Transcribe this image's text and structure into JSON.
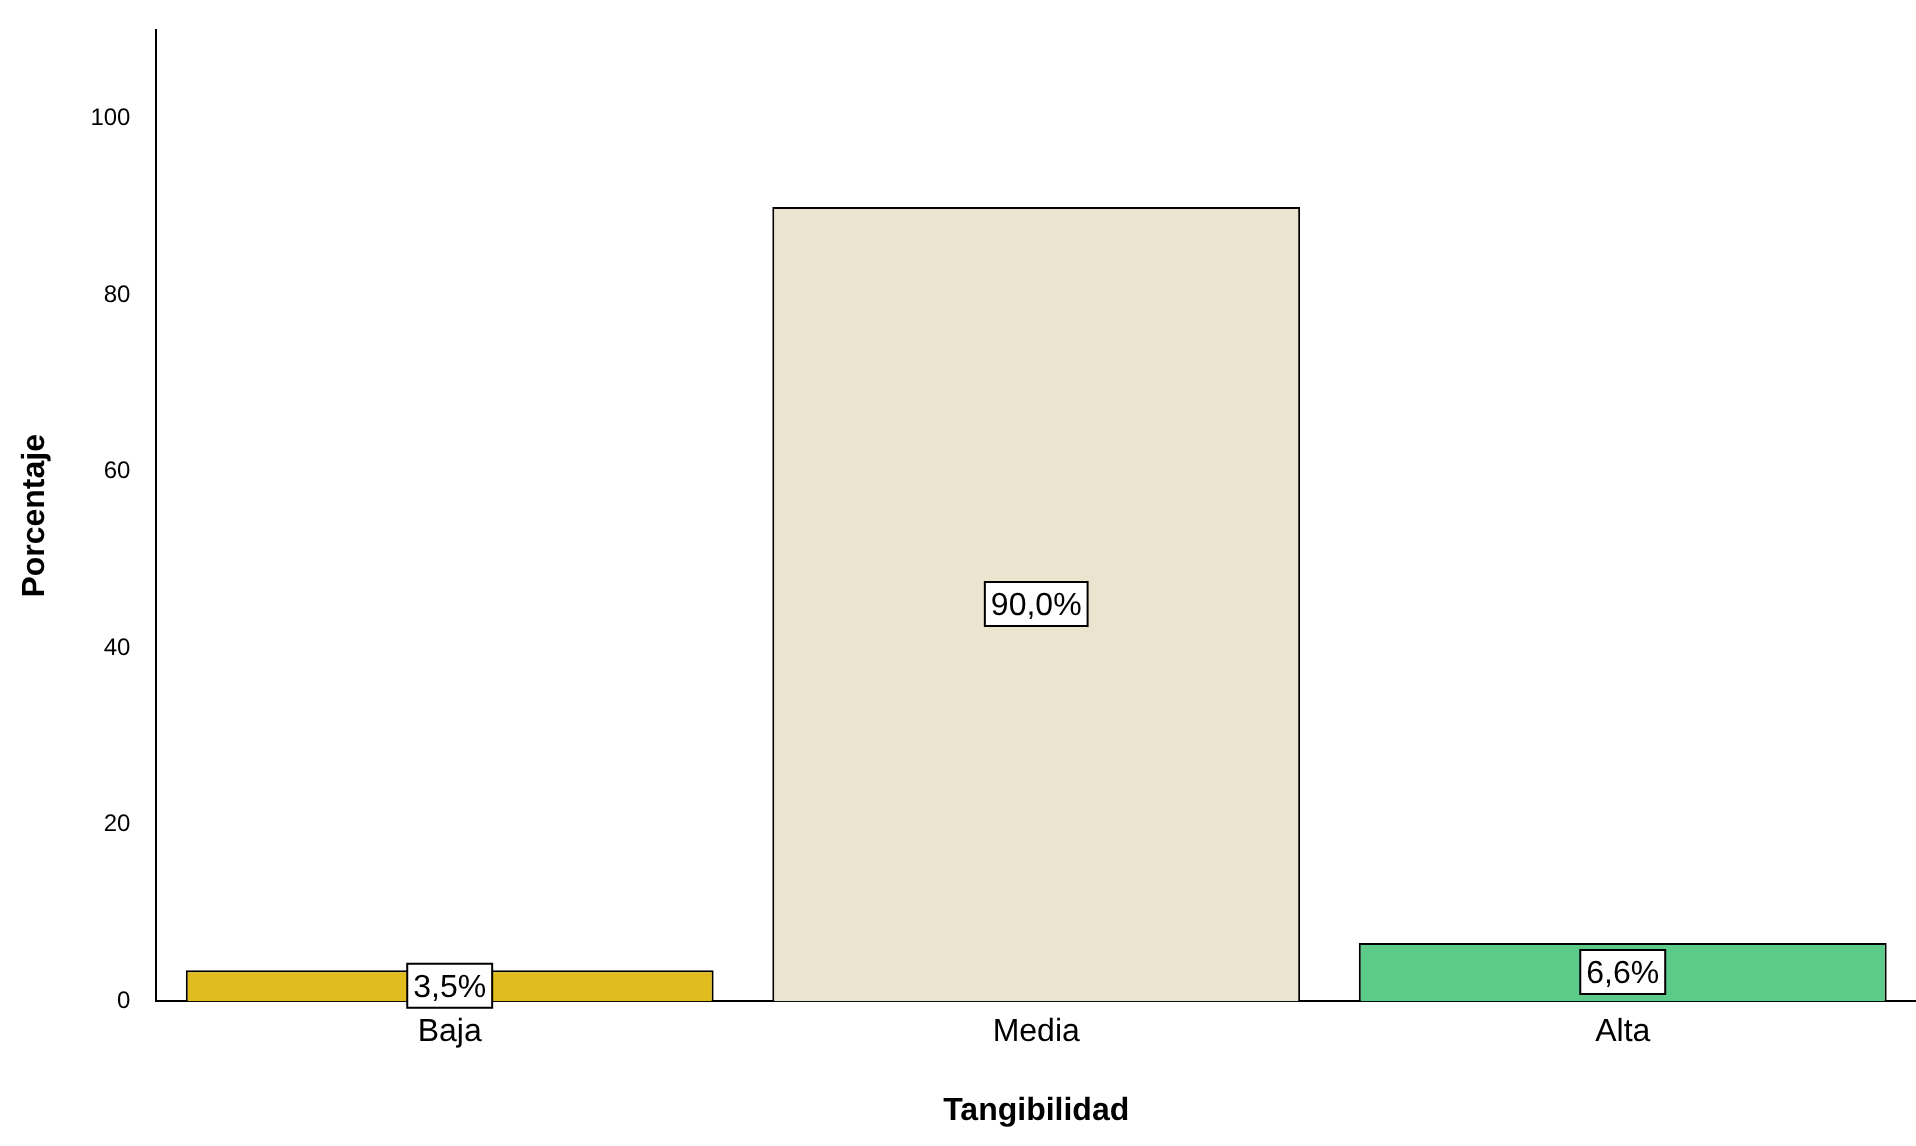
{
  "chart_data": {
    "type": "bar",
    "xlabel": "Tangibilidad",
    "ylabel": "Porcentaje",
    "categories": [
      "Baja",
      "Media",
      "Alta"
    ],
    "values": [
      3.5,
      90.0,
      6.6
    ],
    "colors": [
      "#e1bc1f",
      "#ebe5d0",
      "#5ccb8a"
    ],
    "value_labels": [
      "3,5%",
      "90,0%",
      "6,6%"
    ],
    "ylim": [
      0,
      110
    ],
    "yticks": [
      0,
      20,
      40,
      60,
      80,
      100
    ],
    "grid": false,
    "legend": false
  }
}
